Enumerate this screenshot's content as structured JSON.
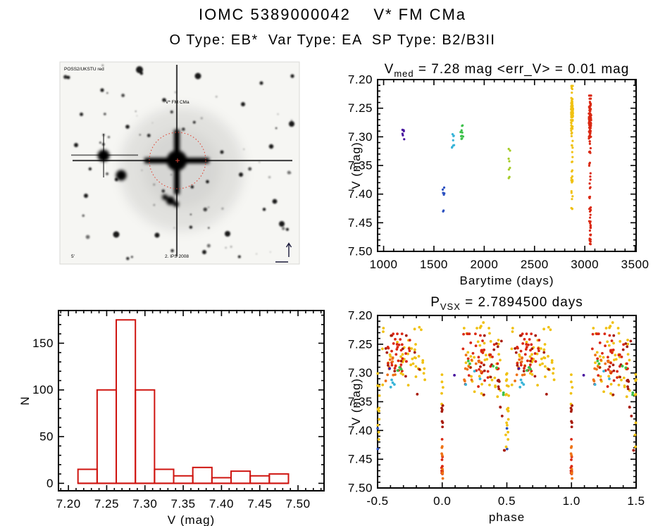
{
  "page": {
    "title": "IOMC 5389000042    V* FM CMa",
    "subtitle": "O Type: EB*  Var Type: EA  SP Type: B2/B3II"
  },
  "finding_chart": {
    "target_label": "V* FM CMa",
    "survey_label": "POSS2/UKSTU red",
    "footer_label": "2. IPS 2008",
    "scale_label": "5'",
    "marker_color": "#e04838",
    "annotation_color": "#223366"
  },
  "colors": {
    "axis": "#000000",
    "hist_bar": "#cf1510",
    "palette": {
      "purple": "#46129e",
      "blue": "#2b50c0",
      "cyan": "#38b4d8",
      "green": "#3cc04a",
      "ygreen": "#a6cc28",
      "gold": "#f0c112",
      "orange": "#ee7214",
      "red": "#da2812",
      "darkred": "#a81c0c"
    }
  },
  "chart_data": [
    {
      "id": "lightcurve",
      "type": "scatter",
      "title_parts": [
        {
          "t": "V"
        },
        {
          "sub": "med"
        },
        {
          "t": " = 7.28 mag <err_V> = 0.01 mag"
        }
      ],
      "xlabel": "Barytime (days)",
      "ylabel": "V (mag)",
      "x_range": [
        940,
        3510
      ],
      "y_range": [
        7.2,
        7.5
      ],
      "x_ticks": [
        {
          "v": 1000,
          "l": "1000"
        },
        {
          "v": 1500,
          "l": "1500"
        },
        {
          "v": 2000,
          "l": "2000"
        },
        {
          "v": 2500,
          "l": "2500"
        },
        {
          "v": 3000,
          "l": "3000"
        },
        {
          "v": 3500,
          "l": "3500"
        }
      ],
      "y_ticks": [
        {
          "v": 7.2,
          "l": "7.20"
        },
        {
          "v": 7.25,
          "l": "7.25"
        },
        {
          "v": 7.3,
          "l": "7.30"
        },
        {
          "v": 7.35,
          "l": "7.35"
        },
        {
          "v": 7.4,
          "l": "7.40"
        },
        {
          "v": 7.45,
          "l": "7.45"
        },
        {
          "v": 7.5,
          "l": "7.50"
        }
      ],
      "x_minor": 100,
      "y_minor": 0.01,
      "clusters": [
        {
          "color": "purple",
          "n": 6,
          "x": [
            1185,
            1205
          ],
          "y": [
            7.287,
            7.306
          ]
        },
        {
          "color": "blue",
          "n": 5,
          "x": [
            1585,
            1605
          ],
          "y": [
            7.386,
            7.401
          ]
        },
        {
          "color": "blue",
          "n": 2,
          "x": [
            1588,
            1600
          ],
          "y": [
            7.428,
            7.437
          ]
        },
        {
          "color": "cyan",
          "n": 9,
          "x": [
            1678,
            1702
          ],
          "y": [
            7.288,
            7.324
          ]
        },
        {
          "color": "green",
          "n": 10,
          "x": [
            1763,
            1793
          ],
          "y": [
            7.279,
            7.306
          ]
        },
        {
          "color": "ygreen",
          "n": 8,
          "x": [
            2243,
            2258
          ],
          "y": [
            7.32,
            7.374
          ]
        },
        {
          "color": "gold",
          "n": 72,
          "x": [
            2863,
            2883
          ],
          "y": [
            7.211,
            7.315
          ],
          "dist": "gauss",
          "mu": 7.262,
          "sigma": 0.026
        },
        {
          "color": "gold",
          "n": 22,
          "x": [
            2866,
            2879
          ],
          "y": [
            7.315,
            7.435
          ]
        },
        {
          "color": "red",
          "n": 85,
          "x": [
            3040,
            3063
          ],
          "y": [
            7.228,
            7.32
          ],
          "dist": "gauss",
          "mu": 7.272,
          "sigma": 0.026
        },
        {
          "color": "red",
          "n": 15,
          "x": [
            3043,
            3060
          ],
          "y": [
            7.32,
            7.42
          ]
        },
        {
          "color": "red",
          "n": 28,
          "x": [
            3043,
            3060
          ],
          "y": [
            7.42,
            7.488
          ]
        }
      ]
    },
    {
      "id": "histogram",
      "type": "bar",
      "title_parts": [],
      "xlabel": "V (mag)",
      "ylabel": "N",
      "x_range": [
        7.187,
        7.534
      ],
      "y_range": [
        185,
        -8
      ],
      "x_ticks": [
        {
          "v": 7.2,
          "l": "7.20"
        },
        {
          "v": 7.25,
          "l": "7.25"
        },
        {
          "v": 7.3,
          "l": "7.30"
        },
        {
          "v": 7.35,
          "l": "7.35"
        },
        {
          "v": 7.4,
          "l": "7.40"
        },
        {
          "v": 7.45,
          "l": "7.45"
        },
        {
          "v": 7.5,
          "l": "7.50"
        }
      ],
      "y_ticks": [
        {
          "v": 0,
          "l": "0"
        },
        {
          "v": 50,
          "l": "50"
        },
        {
          "v": 100,
          "l": "100"
        },
        {
          "v": 150,
          "l": "150"
        }
      ],
      "x_minor": 0.01,
      "y_minor": 10,
      "bin_start": 7.2125,
      "bin_width": 0.025,
      "values": [
        15,
        100,
        175,
        100,
        15,
        8,
        17,
        6,
        13,
        8,
        10
      ]
    },
    {
      "id": "phase",
      "type": "scatter",
      "wrap": true,
      "title_parts": [
        {
          "t": "P"
        },
        {
          "sub": "VSX"
        },
        {
          "t": " = 2.7894500 days"
        }
      ],
      "xlabel": "phase",
      "ylabel": "V (mag)",
      "x_range": [
        -0.5,
        1.5
      ],
      "y_range": [
        7.2,
        7.5
      ],
      "x_ticks": [
        {
          "v": -0.5,
          "l": "-0.5"
        },
        {
          "v": 0.0,
          "l": "0.0"
        },
        {
          "v": 0.5,
          "l": "0.5"
        },
        {
          "v": 1.0,
          "l": "1.0"
        },
        {
          "v": 1.5,
          "l": "1.5"
        }
      ],
      "y_ticks": [
        {
          "v": 7.2,
          "l": "7.20"
        },
        {
          "v": 7.25,
          "l": "7.25"
        },
        {
          "v": 7.3,
          "l": "7.30"
        },
        {
          "v": 7.35,
          "l": "7.35"
        },
        {
          "v": 7.4,
          "l": "7.40"
        },
        {
          "v": 7.45,
          "l": "7.45"
        },
        {
          "v": 7.5,
          "l": "7.50"
        }
      ],
      "x_minor": 0.1,
      "y_minor": 0.01,
      "clusters": [
        {
          "color": "gold",
          "n": 46,
          "x": [
            0.16,
            0.47
          ],
          "y": [
            7.222,
            7.345
          ],
          "dist": "gauss",
          "mu": 7.272,
          "sigma": 0.028
        },
        {
          "color": "red",
          "n": 36,
          "x": [
            0.16,
            0.44
          ],
          "y": [
            7.232,
            7.345
          ],
          "dist": "gauss",
          "mu": 7.272,
          "sigma": 0.026
        },
        {
          "color": "darkred",
          "n": 14,
          "x": [
            0.17,
            0.46
          ],
          "y": [
            7.235,
            7.34
          ],
          "dist": "gauss",
          "mu": 7.275,
          "sigma": 0.03
        },
        {
          "color": "orange",
          "n": 12,
          "x": [
            0.17,
            0.3
          ],
          "y": [
            7.26,
            7.315
          ]
        },
        {
          "color": "green",
          "n": 4,
          "x": [
            0.2,
            0.45
          ],
          "y": [
            7.27,
            7.31
          ]
        },
        {
          "color": "cyan",
          "n": 3,
          "x": [
            0.17,
            0.3
          ],
          "y": [
            7.29,
            7.325
          ]
        },
        {
          "color": "gold",
          "n": 42,
          "x": [
            0.53,
            0.87
          ],
          "y": [
            7.222,
            7.345
          ],
          "dist": "gauss",
          "mu": 7.272,
          "sigma": 0.028
        },
        {
          "color": "red",
          "n": 34,
          "x": [
            0.58,
            0.75
          ],
          "y": [
            7.232,
            7.34
          ],
          "dist": "gauss",
          "mu": 7.272,
          "sigma": 0.026
        },
        {
          "color": "darkred",
          "n": 12,
          "x": [
            0.55,
            0.85
          ],
          "y": [
            7.235,
            7.34
          ],
          "dist": "gauss",
          "mu": 7.275,
          "sigma": 0.03
        },
        {
          "color": "orange",
          "n": 10,
          "x": [
            0.56,
            0.64
          ],
          "y": [
            7.27,
            7.315
          ]
        },
        {
          "color": "green",
          "n": 3,
          "x": [
            0.63,
            0.7
          ],
          "y": [
            7.28,
            7.31
          ]
        },
        {
          "color": "cyan",
          "n": 4,
          "x": [
            0.6,
            0.65
          ],
          "y": [
            7.3,
            7.325
          ]
        },
        {
          "color": "purple",
          "n": 1,
          "x": [
            0.585,
            0.595
          ],
          "y": [
            7.289,
            7.293
          ]
        },
        {
          "color": "purple",
          "n": 1,
          "x": [
            0.092,
            0.1
          ],
          "y": [
            7.3,
            7.306
          ]
        },
        {
          "color": "blue",
          "n": 1,
          "x": [
            0.5,
            0.506
          ],
          "y": [
            7.393,
            7.397
          ]
        },
        {
          "color": "blue",
          "n": 1,
          "x": [
            0.498,
            0.504
          ],
          "y": [
            7.432,
            7.437
          ]
        },
        {
          "color": "gold",
          "n": 6,
          "x": [
            -0.006,
            0.006
          ],
          "y": [
            7.295,
            7.36
          ]
        },
        {
          "color": "darkred",
          "n": 7,
          "x": [
            -0.005,
            0.005
          ],
          "y": [
            7.35,
            7.41
          ]
        },
        {
          "color": "red",
          "n": 10,
          "x": [
            -0.005,
            0.006
          ],
          "y": [
            7.41,
            7.487
          ]
        },
        {
          "color": "orange",
          "n": 8,
          "x": [
            -0.004,
            0.005
          ],
          "y": [
            7.42,
            7.487
          ]
        },
        {
          "color": "gold",
          "n": 20,
          "x": [
            0.49,
            0.515
          ],
          "y": [
            7.3,
            7.432
          ]
        },
        {
          "color": "darkred",
          "n": 11,
          "x": [
            0.43,
            0.487
          ],
          "y": [
            7.3,
            7.44
          ],
          "corr": true
        },
        {
          "color": "green",
          "n": 2,
          "x": [
            0.465,
            0.475
          ],
          "y": [
            7.325,
            7.34
          ]
        },
        {
          "color": "gold",
          "n": 3,
          "x": [
            0.28,
            0.33
          ],
          "y": [
            7.212,
            7.222
          ]
        },
        {
          "color": "gold",
          "n": 3,
          "x": [
            0.78,
            0.84
          ],
          "y": [
            7.212,
            7.225
          ]
        }
      ]
    }
  ]
}
